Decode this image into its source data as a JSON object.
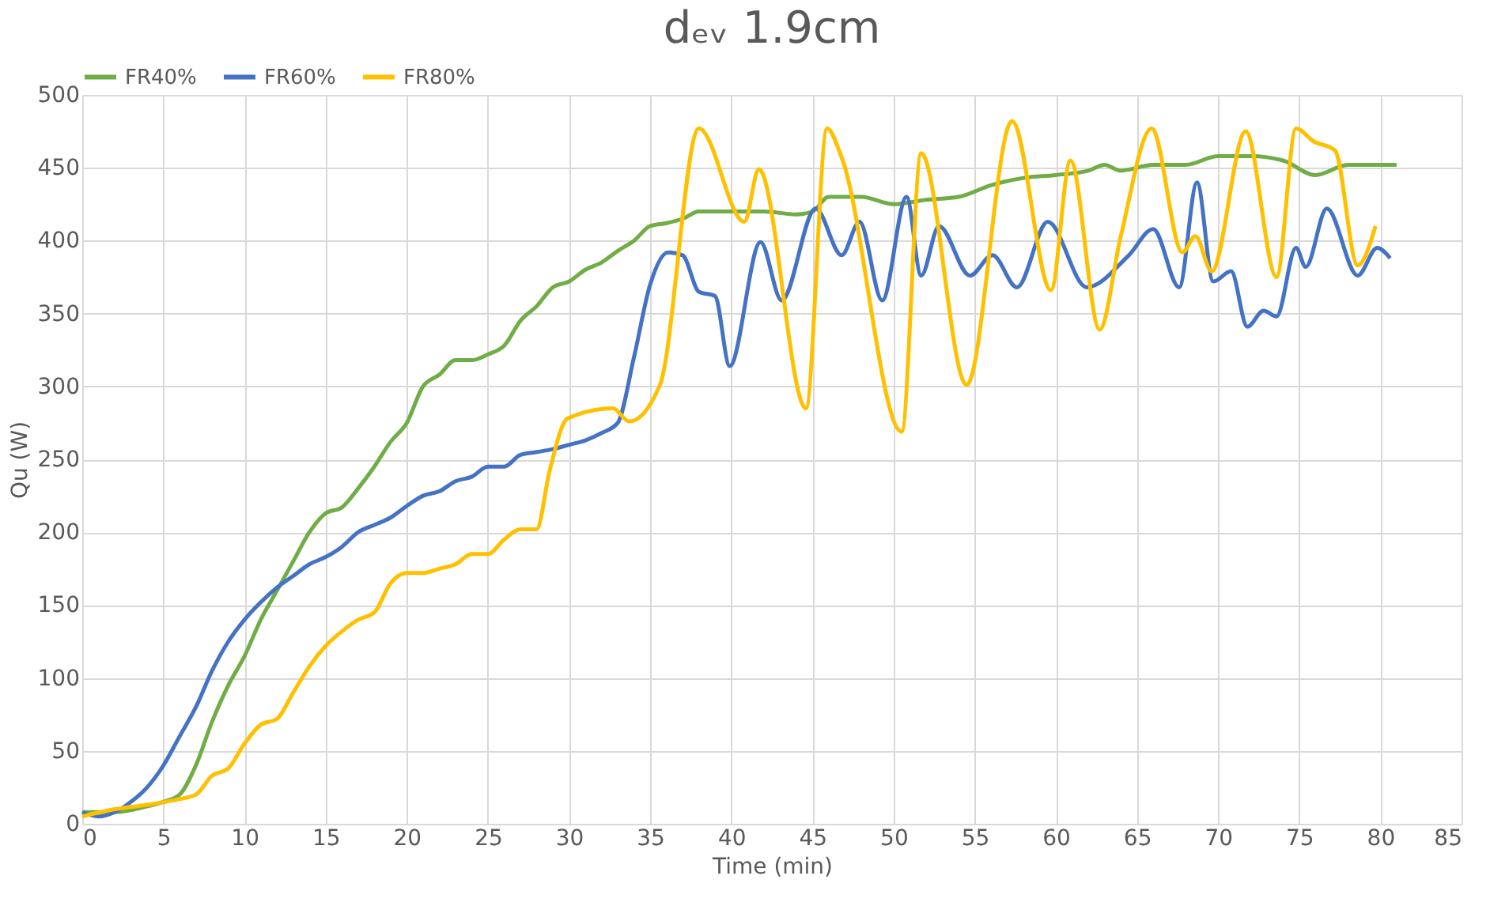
{
  "chart_data": {
    "type": "line",
    "title": "dₑᵥ 1.9cm",
    "xlabel": "Time (min)",
    "ylabel": "Qu (W)",
    "xlim": [
      0,
      85
    ],
    "xticks": [
      0,
      5,
      10,
      15,
      20,
      25,
      30,
      35,
      40,
      45,
      50,
      55,
      60,
      65,
      70,
      75,
      80,
      85
    ],
    "ylim": [
      0,
      500
    ],
    "yticks": [
      0,
      50,
      100,
      150,
      200,
      250,
      300,
      350,
      400,
      450,
      500
    ],
    "grid": true,
    "legend": "top",
    "marker": "none",
    "line_style": "solid",
    "series": [
      {
        "name": "FR40%",
        "color": "#70ad47",
        "x": [
          0,
          2,
          4,
          5,
          6,
          7,
          8,
          9,
          10,
          11,
          12,
          13,
          14,
          15,
          16,
          17,
          18,
          19,
          20,
          21,
          22,
          23,
          24,
          25,
          26,
          27,
          28,
          29,
          30,
          31,
          32,
          33,
          34,
          35,
          36,
          37,
          38,
          40,
          42,
          44,
          45,
          46,
          48,
          50,
          52,
          54,
          56,
          58,
          60,
          62,
          63,
          64,
          66,
          68,
          70,
          72,
          74,
          76,
          78,
          80,
          81
        ],
        "values": [
          8,
          8,
          12,
          15,
          20,
          40,
          70,
          95,
          115,
          140,
          160,
          180,
          200,
          213,
          217,
          230,
          245,
          262,
          275,
          300,
          308,
          318,
          318,
          322,
          328,
          345,
          355,
          368,
          372,
          380,
          385,
          393,
          400,
          410,
          412,
          415,
          420,
          420,
          420,
          418,
          420,
          430,
          430,
          425,
          428,
          430,
          438,
          443,
          445,
          448,
          452,
          448,
          452,
          452,
          458,
          458,
          455,
          445,
          452,
          452,
          452
        ]
      },
      {
        "name": "FR60%",
        "color": "#4472c4",
        "x": [
          0,
          1,
          2,
          3,
          4,
          5,
          6,
          7,
          8,
          9,
          10,
          11,
          12,
          13,
          14,
          15,
          16,
          17,
          18,
          19,
          20,
          21,
          22,
          23,
          24,
          25,
          26,
          27,
          28,
          29,
          30,
          31,
          32,
          33,
          34,
          35,
          36.1,
          37,
          38,
          39,
          39.9,
          41.8,
          43.1,
          45.2,
          46.8,
          47.9,
          49.3,
          50.8,
          51.7,
          52.8,
          54.7,
          56.1,
          57.6,
          59.5,
          61.9,
          64.5,
          66,
          67.6,
          68.7,
          69.7,
          70.8,
          71.8,
          72.8,
          73.6,
          74.8,
          75.4,
          76.7,
          78.6,
          79.8,
          80.6
        ],
        "values": [
          8,
          5,
          8,
          15,
          25,
          40,
          60,
          80,
          105,
          125,
          140,
          152,
          162,
          170,
          178,
          183,
          190,
          200,
          205,
          210,
          218,
          225,
          228,
          235,
          238,
          245,
          245,
          253,
          255,
          257,
          260,
          263,
          268,
          275,
          320,
          370,
          392,
          390,
          365,
          362,
          314,
          399,
          359,
          422,
          390,
          413,
          359,
          430,
          376,
          410,
          376,
          390,
          368,
          413,
          368,
          390,
          408,
          368,
          440,
          372,
          379,
          341,
          352,
          348,
          395,
          382,
          422,
          376,
          395,
          388
        ]
      },
      {
        "name": "FR80%",
        "color": "#ffc000",
        "x": [
          0,
          2,
          4,
          6,
          7,
          8,
          9,
          10,
          11,
          12,
          13,
          14,
          15,
          16,
          17,
          18,
          19,
          20,
          21,
          22,
          23,
          24,
          25,
          26,
          27,
          28,
          28.8,
          29.9,
          32.7,
          33.7,
          35.6,
          38,
          40.8,
          41.7,
          44.6,
          45.9,
          46.8,
          50.5,
          51.7,
          54.5,
          57.3,
          59.7,
          60.9,
          62.7,
          64,
          65.9,
          67.8,
          68.6,
          69.6,
          71.7,
          73.6,
          74.8,
          75.9,
          77.2,
          78.6,
          79.7
        ],
        "values": [
          5,
          10,
          13,
          17,
          20,
          33,
          38,
          55,
          68,
          72,
          90,
          108,
          122,
          132,
          140,
          145,
          165,
          172,
          172,
          175,
          178,
          185,
          185,
          195,
          202,
          202,
          242,
          278,
          285,
          276,
          301,
          477,
          413,
          449,
          285,
          477,
          457,
          269,
          460,
          301,
          482,
          366,
          455,
          339,
          403,
          477,
          392,
          403,
          379,
          475,
          375,
          477,
          468,
          462,
          383,
          410
        ]
      }
    ]
  }
}
